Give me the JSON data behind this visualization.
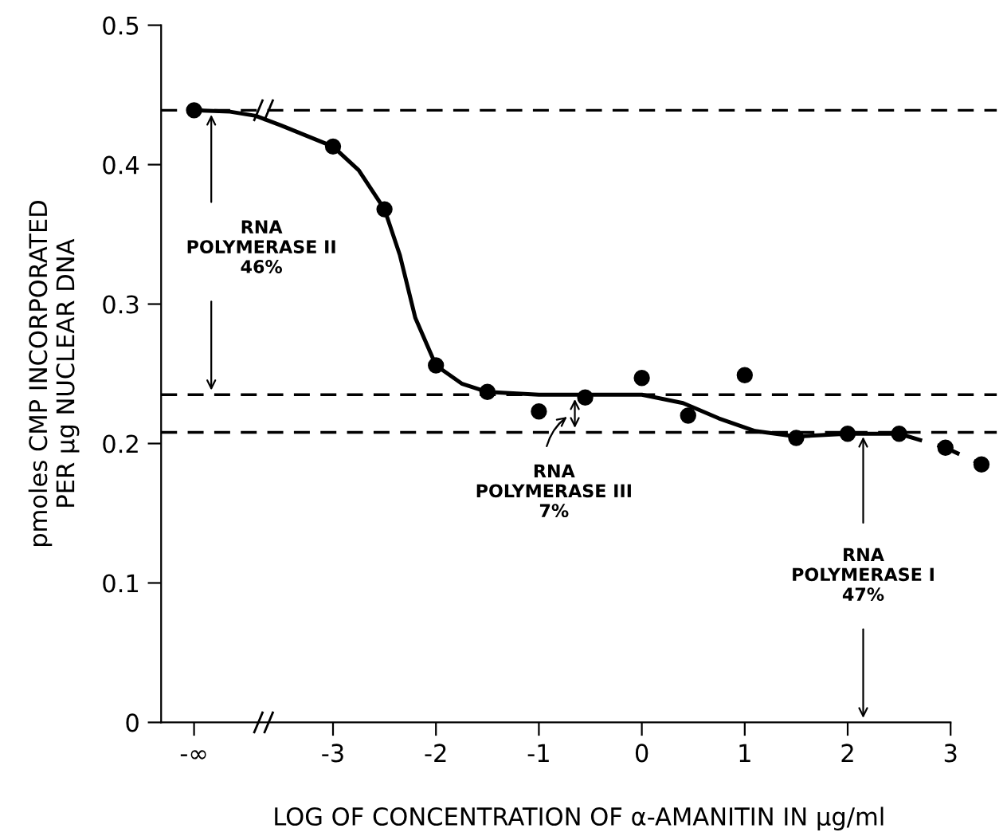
{
  "chart_data": {
    "type": "scatter",
    "xlabel": "LOG OF CONCENTRATION OF α-AMANITIN IN µg/ml",
    "ylabel": "pmoles CMP INCORPORATED\nPER µg NUCLEAR DNA",
    "xlim": [
      -4.67,
      3.45
    ],
    "ylim": [
      0,
      0.5
    ],
    "xticks": [
      {
        "value": -4.35,
        "label": "-∞"
      },
      -3,
      -2,
      -1,
      0,
      1,
      2,
      3
    ],
    "yticks": [
      0,
      0.1,
      0.2,
      0.3,
      0.4,
      0.5
    ],
    "grid": false,
    "series": [
      {
        "marker": "circle",
        "color": "#000000",
        "x": [
          -4.35,
          -3,
          -2.5,
          -2,
          -1.5,
          -1,
          -0.55,
          0,
          0.45,
          1,
          1.5,
          2,
          2.5,
          2.95,
          3.3
        ],
        "values": [
          0.439,
          0.413,
          0.368,
          0.256,
          0.237,
          0.223,
          0.233,
          0.247,
          0.22,
          0.249,
          0.204,
          0.207,
          0.207,
          0.197,
          0.185
        ]
      },
      {
        "type": "line",
        "color": "#000000",
        "line_style": "solid",
        "marker": "none",
        "x": [
          -4.35,
          -4.0,
          -3.75,
          -3.5,
          -3,
          -2.75,
          -2.5,
          -2.35,
          -2.2,
          -2,
          -1.75,
          -1.5,
          -1,
          -0.5,
          0,
          0.4,
          0.75,
          1.1,
          1.5,
          2,
          2.5
        ],
        "values": [
          0.439,
          0.438,
          0.435,
          0.428,
          0.413,
          0.396,
          0.368,
          0.335,
          0.29,
          0.256,
          0.243,
          0.237,
          0.235,
          0.235,
          0.235,
          0.229,
          0.218,
          0.209,
          0.205,
          0.207,
          0.207
        ]
      },
      {
        "type": "line",
        "color": "#000000",
        "line_style": "dashed",
        "marker": "none",
        "x": [
          2.5,
          2.95,
          3.3
        ],
        "values": [
          0.207,
          0.197,
          0.185
        ]
      }
    ],
    "ref_lines": [
      {
        "axis": "y",
        "value": 0.439,
        "color": "#000000",
        "line_style": "dashed"
      },
      {
        "axis": "y",
        "value": 0.235,
        "color": "#000000",
        "line_style": "dashed"
      },
      {
        "axis": "y",
        "value": 0.208,
        "color": "#000000",
        "line_style": "dashed"
      }
    ],
    "annotations": [
      "RNA\nPOLYMERASE II\n46%",
      "RNA\nPOLYMERASE III\n7%",
      "RNA\nPOLYMERASE I\n47%"
    ]
  }
}
